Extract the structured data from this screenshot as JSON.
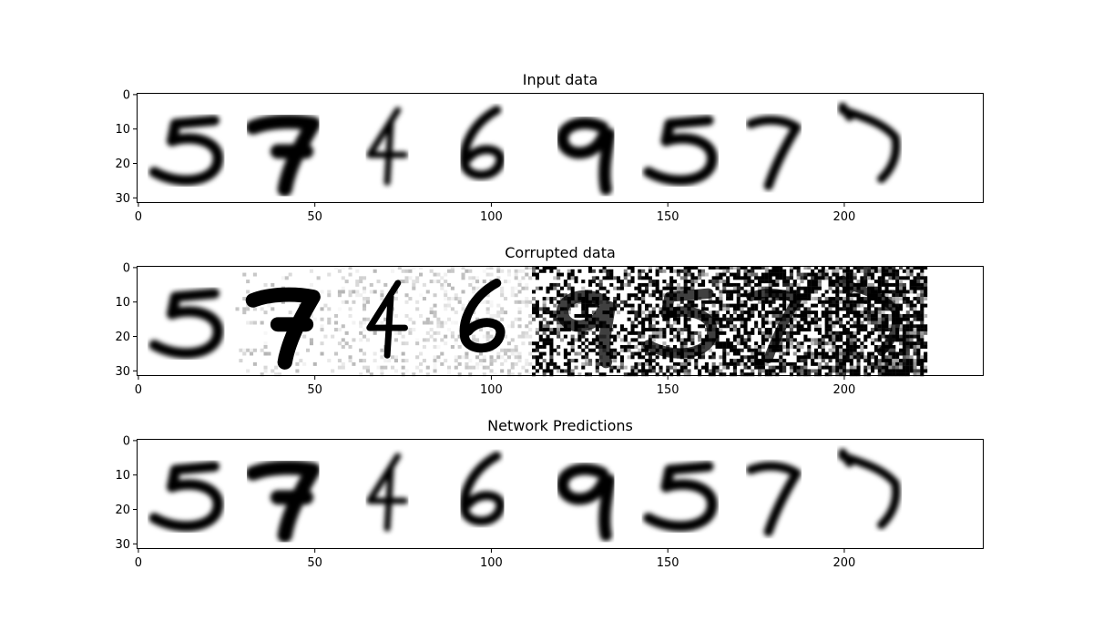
{
  "figure": {
    "background": "#ffffff",
    "axis_color": "#000000"
  },
  "chart_data": [
    {
      "type": "heatmap",
      "title": "Input data",
      "xlabel": "",
      "ylabel": "",
      "xlim": [
        0,
        240
      ],
      "ylim": [
        31.5,
        -0.5
      ],
      "xticks": [
        0,
        50,
        100,
        150,
        200
      ],
      "yticks": [
        0,
        10,
        20,
        30
      ],
      "colormap": "Greys",
      "digits": [
        "5",
        "7",
        "4",
        "6",
        "9",
        "5",
        "7",
        "7"
      ],
      "noise_levels": [
        0,
        0,
        0,
        0,
        0,
        0,
        0,
        0
      ],
      "blur": 0,
      "grid": false
    },
    {
      "type": "heatmap",
      "title": "Corrupted data",
      "xlabel": "",
      "ylabel": "",
      "xlim": [
        0,
        240
      ],
      "ylim": [
        31.5,
        -0.5
      ],
      "xticks": [
        0,
        50,
        100,
        150,
        200
      ],
      "yticks": [
        0,
        10,
        20,
        30
      ],
      "colormap": "Greys",
      "digits": [
        "5",
        "7",
        "4",
        "6",
        "9",
        "5",
        "7",
        "7"
      ],
      "noise_levels": [
        0.0,
        0.14,
        0.28,
        0.42,
        0.57,
        0.71,
        0.85,
        1.0
      ],
      "blur": 0,
      "grid": false
    },
    {
      "type": "heatmap",
      "title": "Network Predictions",
      "xlabel": "",
      "ylabel": "",
      "xlim": [
        0,
        240
      ],
      "ylim": [
        31.5,
        -0.5
      ],
      "xticks": [
        0,
        50,
        100,
        150,
        200
      ],
      "yticks": [
        0,
        10,
        20,
        30
      ],
      "colormap": "Greys",
      "digits": [
        "5",
        "7",
        "4",
        "6",
        "9",
        "5",
        "7",
        "7"
      ],
      "noise_levels": [
        0,
        0,
        0,
        0,
        0,
        0,
        0,
        0
      ],
      "blur": 1,
      "grid": false
    }
  ]
}
